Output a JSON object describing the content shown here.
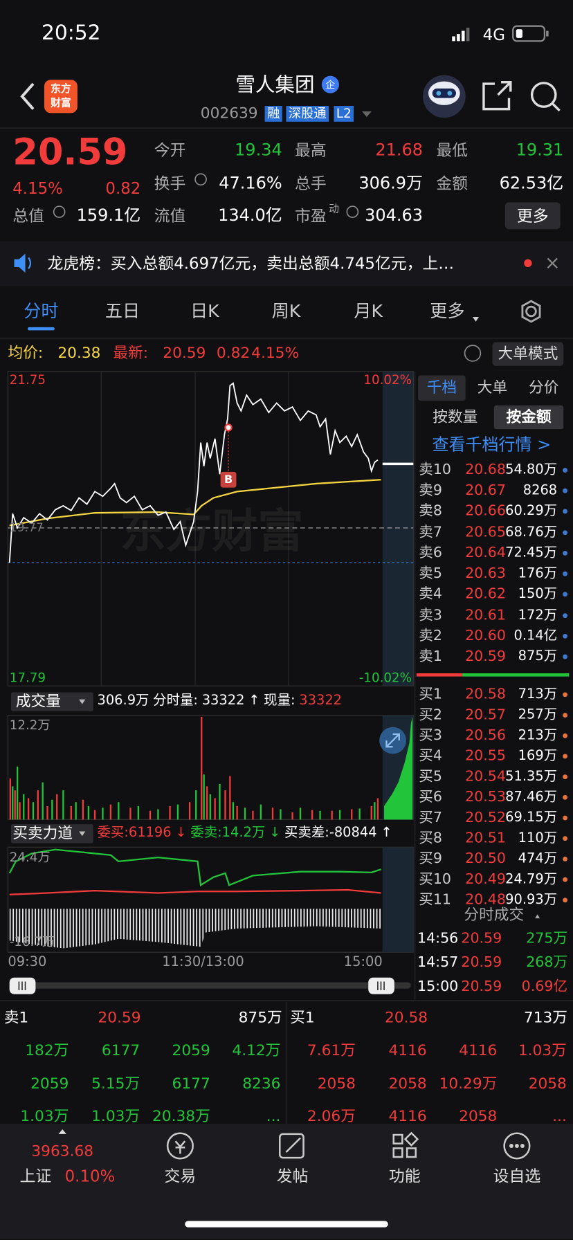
{
  "status": {
    "time": "20:52",
    "network": "4G"
  },
  "header": {
    "logo": [
      "东方",
      "财富"
    ],
    "title": "雪人集团",
    "badge": "企",
    "code": "002639",
    "tags": [
      "融",
      "深股通",
      "L2"
    ]
  },
  "quote": {
    "price": "20.59",
    "change_pct": "4.15%",
    "change": "0.82",
    "fields": [
      {
        "label": "今开",
        "value": "19.34",
        "color": "#22c43a"
      },
      {
        "label": "最高",
        "value": "21.68",
        "color": "#f23b3b"
      },
      {
        "label": "最低",
        "value": "19.31",
        "color": "#22c43a"
      },
      {
        "label": "换手",
        "value": "47.16%",
        "color": "#ffffff"
      },
      {
        "label": "总手",
        "value": "306.9万",
        "color": "#ffffff"
      },
      {
        "label": "金额",
        "value": "62.53亿",
        "color": "#ffffff"
      },
      {
        "label": "总值",
        "value": "159.1亿",
        "color": "#ffffff"
      },
      {
        "label": "流值",
        "value": "134.0亿",
        "color": "#ffffff"
      },
      {
        "label": "市盈",
        "sup": "动",
        "value": "304.63",
        "color": "#ffffff"
      }
    ],
    "more": "更多"
  },
  "banner": {
    "text": "龙虎榜：买入总额4.697亿元，卖出总额4.745亿元，上…"
  },
  "tabs": {
    "items": [
      "分时",
      "五日",
      "日K",
      "周K",
      "月K",
      "更多"
    ],
    "active": 0
  },
  "info": {
    "avg_label": "均价:",
    "avg": "20.38",
    "latest_label": "最新:",
    "latest": "20.59",
    "change": "0.82",
    "pct": "4.15%",
    "mode": "大单模式"
  },
  "chart": {
    "watermark": "东方财富",
    "price_high": "21.75",
    "price_low": "17.79",
    "prev_close": "19.77",
    "pct_high": "10.02%",
    "pct_low": "-10.02%",
    "marker": "B"
  },
  "volume": {
    "label": "成交量",
    "total": "306.9万",
    "period_label": "分时量:",
    "period": "33322",
    "arrow": "↑",
    "now_label": "现量:",
    "now": "33322",
    "max": "12.2万"
  },
  "force": {
    "label": "买卖力道",
    "buy": "委买:61196",
    "buy_arrow": "↓",
    "sell": "委卖:14.2万",
    "sell_arrow": "↓",
    "diff": "买卖差:-80844",
    "diff_arrow": "↑",
    "max": "24.4万",
    "min": "-16.7万"
  },
  "times": [
    "09:30",
    "11:30/13:00",
    "15:00"
  ],
  "side": {
    "tabs": [
      "千档",
      "大单",
      "分价"
    ],
    "modes": [
      "按数量",
      "按金额"
    ],
    "link": "查看千档行情 >",
    "asks": [
      {
        "label": "卖10",
        "price": "20.68",
        "amount": "54.80万"
      },
      {
        "label": "卖9",
        "price": "20.67",
        "amount": "8268"
      },
      {
        "label": "卖8",
        "price": "20.66",
        "amount": "60.29万"
      },
      {
        "label": "卖7",
        "price": "20.65",
        "amount": "68.76万"
      },
      {
        "label": "卖6",
        "price": "20.64",
        "amount": "72.45万"
      },
      {
        "label": "卖5",
        "price": "20.63",
        "amount": "176万"
      },
      {
        "label": "卖4",
        "price": "20.62",
        "amount": "150万"
      },
      {
        "label": "卖3",
        "price": "20.61",
        "amount": "172万"
      },
      {
        "label": "卖2",
        "price": "20.60",
        "amount": "0.14亿"
      },
      {
        "label": "卖1",
        "price": "20.59",
        "amount": "875万"
      }
    ],
    "bids": [
      {
        "label": "买1",
        "price": "20.58",
        "amount": "713万"
      },
      {
        "label": "买2",
        "price": "20.57",
        "amount": "257万"
      },
      {
        "label": "买3",
        "price": "20.56",
        "amount": "213万"
      },
      {
        "label": "买4",
        "price": "20.55",
        "amount": "169万"
      },
      {
        "label": "买5",
        "price": "20.54",
        "amount": "51.35万"
      },
      {
        "label": "买6",
        "price": "20.53",
        "amount": "87.46万"
      },
      {
        "label": "买7",
        "price": "20.52",
        "amount": "69.15万"
      },
      {
        "label": "买8",
        "price": "20.51",
        "amount": "110万"
      },
      {
        "label": "买9",
        "price": "20.50",
        "amount": "474万"
      },
      {
        "label": "买10",
        "price": "20.49",
        "amount": "24.79万"
      },
      {
        "label": "买11",
        "price": "20.48",
        "amount": "90.93万"
      }
    ],
    "trades_title": "分时成交",
    "trades": [
      {
        "time": "14:56",
        "price": "20.59",
        "volume": "275万",
        "color": "#22c43a"
      },
      {
        "time": "14:57",
        "price": "20.59",
        "volume": "268万",
        "color": "#22c43a"
      },
      {
        "time": "15:00",
        "price": "20.59",
        "volume": "0.69亿",
        "color": "#f23b3b"
      }
    ]
  },
  "book": {
    "ask": {
      "label": "卖1",
      "price": "20.59",
      "amount": "875万",
      "rows": [
        [
          "182万",
          "6177",
          "2059",
          "4.12万"
        ],
        [
          "2059",
          "5.15万",
          "6177",
          "8236"
        ],
        [
          "1.03万",
          "1.03万",
          "20.38万",
          "..."
        ]
      ]
    },
    "bid": {
      "label": "买1",
      "price": "20.58",
      "amount": "713万",
      "rows": [
        [
          "7.61万",
          "4116",
          "4116",
          "1.03万"
        ],
        [
          "2058",
          "2058",
          "10.29万",
          "2058"
        ],
        [
          "2.06万",
          "4116",
          "2058",
          "..."
        ]
      ]
    }
  },
  "nav": {
    "index_value": "3963.68",
    "index_name": "上证",
    "index_pct": "0.10%",
    "items": [
      "交易",
      "发帖",
      "功能",
      "设自选"
    ]
  }
}
